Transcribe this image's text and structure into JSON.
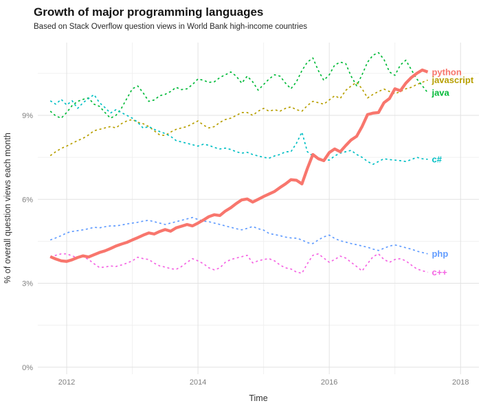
{
  "header": {
    "title": "Growth of major programming languages",
    "subtitle": "Based on Stack Overflow question views in World Bank high-income countries"
  },
  "chart_data": {
    "type": "line",
    "title": "Growth of major programming languages",
    "subtitle": "Based on Stack Overflow question views in World Bank high-income countries",
    "xlabel": "Time",
    "ylabel": "% of overall question views each month",
    "x_unit": "decimal years, monthly samples",
    "x_start": 2011.75,
    "x_step": 0.0833333,
    "n_points": 70,
    "x_range": [
      2011.56,
      2018.28
    ],
    "y_range": [
      -0.25,
      11.6
    ],
    "x_ticks": [
      {
        "value": 2012,
        "label": "2012"
      },
      {
        "value": 2014,
        "label": "2014"
      },
      {
        "value": 2016,
        "label": "2016"
      },
      {
        "value": 2018,
        "label": "2018"
      }
    ],
    "x_minor_ticks": [
      2013,
      2015,
      2017
    ],
    "y_ticks": [
      {
        "value": 0,
        "label": "0%"
      },
      {
        "value": 3,
        "label": "3%"
      },
      {
        "value": 6,
        "label": "6%"
      },
      {
        "value": 9,
        "label": "9%"
      }
    ],
    "y_minor_ticks": [
      1.5,
      4.5,
      7.5,
      10.5
    ],
    "grid": {
      "major_color": "#e2e2e2",
      "minor_color": "#f0f0f0",
      "background": "#ffffff"
    },
    "legend_position": "right-of-line-ends",
    "series": [
      {
        "name": "python",
        "color": "#F8766D",
        "style": "solid",
        "width": 4.3,
        "values": [
          3.95,
          3.87,
          3.8,
          3.78,
          3.84,
          3.92,
          3.98,
          3.94,
          4.02,
          4.1,
          4.16,
          4.24,
          4.33,
          4.4,
          4.46,
          4.55,
          4.63,
          4.72,
          4.8,
          4.76,
          4.85,
          4.92,
          4.86,
          4.98,
          5.04,
          5.1,
          5.05,
          5.15,
          5.26,
          5.38,
          5.45,
          5.42,
          5.58,
          5.7,
          5.85,
          5.98,
          6.01,
          5.9,
          6.0,
          6.1,
          6.19,
          6.28,
          6.42,
          6.55,
          6.7,
          6.68,
          6.55,
          7.1,
          7.6,
          7.45,
          7.38,
          7.67,
          7.8,
          7.7,
          7.92,
          8.12,
          8.25,
          8.6,
          9.03,
          9.08,
          9.1,
          9.45,
          9.6,
          9.95,
          9.88,
          10.15,
          10.35,
          10.5,
          10.62,
          10.55
        ]
      },
      {
        "name": "javascript",
        "color": "#B79F00",
        "style": "dashed",
        "width": 1.7,
        "values": [
          7.56,
          7.7,
          7.82,
          7.9,
          8.0,
          8.1,
          8.18,
          8.3,
          8.45,
          8.5,
          8.55,
          8.6,
          8.55,
          8.7,
          8.8,
          8.85,
          8.75,
          8.7,
          8.6,
          8.45,
          8.3,
          8.28,
          8.4,
          8.5,
          8.55,
          8.6,
          8.7,
          8.8,
          8.65,
          8.55,
          8.6,
          8.75,
          8.85,
          8.9,
          9.0,
          9.1,
          9.1,
          9.0,
          9.15,
          9.25,
          9.15,
          9.2,
          9.15,
          9.25,
          9.3,
          9.2,
          9.15,
          9.35,
          9.5,
          9.45,
          9.4,
          9.55,
          9.7,
          9.6,
          9.89,
          10.05,
          10.18,
          9.95,
          9.62,
          9.75,
          9.85,
          9.94,
          9.85,
          9.77,
          9.85,
          9.95,
          10.0,
          10.1,
          10.18,
          10.26
        ]
      },
      {
        "name": "java",
        "color": "#00BA38",
        "style": "dashed",
        "width": 1.7,
        "values": [
          9.15,
          8.98,
          8.9,
          9.1,
          9.35,
          9.5,
          9.57,
          9.62,
          9.4,
          9.32,
          9.1,
          8.9,
          9.0,
          9.25,
          9.6,
          9.95,
          10.05,
          9.8,
          9.5,
          9.55,
          9.7,
          9.75,
          9.85,
          10.0,
          9.92,
          9.95,
          10.1,
          10.3,
          10.25,
          10.18,
          10.2,
          10.35,
          10.45,
          10.55,
          10.4,
          10.15,
          10.4,
          10.2,
          9.9,
          10.1,
          10.3,
          10.45,
          10.4,
          10.15,
          9.95,
          10.2,
          10.6,
          10.9,
          11.05,
          10.6,
          10.25,
          10.45,
          10.8,
          10.9,
          10.85,
          10.4,
          10.06,
          10.45,
          10.9,
          11.15,
          11.24,
          11.0,
          10.55,
          10.43,
          10.8,
          10.97,
          10.63,
          10.3,
          10.06,
          9.81
        ]
      },
      {
        "name": "c#",
        "color": "#00BFC4",
        "style": "dashed",
        "width": 1.7,
        "values": [
          9.52,
          9.4,
          9.57,
          9.37,
          9.52,
          9.25,
          9.45,
          9.6,
          9.74,
          9.45,
          9.28,
          9.08,
          9.2,
          9.1,
          9.0,
          8.9,
          8.75,
          8.54,
          8.6,
          8.5,
          8.42,
          8.35,
          8.25,
          8.1,
          8.05,
          8.0,
          7.95,
          7.9,
          7.97,
          7.93,
          7.85,
          7.8,
          7.83,
          7.78,
          7.7,
          7.65,
          7.68,
          7.6,
          7.55,
          7.5,
          7.47,
          7.55,
          7.6,
          7.7,
          7.7,
          8.0,
          8.4,
          7.7,
          7.55,
          7.45,
          7.42,
          7.4,
          7.55,
          7.65,
          7.7,
          7.75,
          7.6,
          7.5,
          7.35,
          7.25,
          7.35,
          7.45,
          7.42,
          7.4,
          7.38,
          7.35,
          7.42,
          7.5,
          7.45,
          7.43
        ]
      },
      {
        "name": "php",
        "color": "#619CFF",
        "style": "dashed",
        "width": 1.7,
        "values": [
          4.55,
          4.62,
          4.7,
          4.8,
          4.85,
          4.88,
          4.91,
          4.95,
          5.0,
          4.98,
          5.02,
          5.05,
          5.05,
          5.08,
          5.12,
          5.15,
          5.18,
          5.22,
          5.25,
          5.2,
          5.15,
          5.1,
          5.15,
          5.2,
          5.25,
          5.3,
          5.35,
          5.28,
          5.22,
          5.2,
          5.15,
          5.1,
          5.05,
          5.0,
          4.95,
          4.91,
          4.96,
          5.03,
          4.95,
          4.9,
          4.78,
          4.74,
          4.7,
          4.65,
          4.62,
          4.61,
          4.55,
          4.45,
          4.42,
          4.55,
          4.66,
          4.72,
          4.6,
          4.52,
          4.47,
          4.42,
          4.38,
          4.33,
          4.29,
          4.22,
          4.17,
          4.25,
          4.33,
          4.37,
          4.32,
          4.27,
          4.22,
          4.15,
          4.1,
          4.05
        ]
      },
      {
        "name": "c++",
        "color": "#F564E3",
        "style": "dashed",
        "width": 1.7,
        "values": [
          3.95,
          4.0,
          4.05,
          4.05,
          3.98,
          3.9,
          3.95,
          3.85,
          3.7,
          3.56,
          3.58,
          3.62,
          3.6,
          3.65,
          3.72,
          3.8,
          3.93,
          3.88,
          3.85,
          3.72,
          3.62,
          3.58,
          3.52,
          3.5,
          3.6,
          3.75,
          3.88,
          3.8,
          3.7,
          3.55,
          3.48,
          3.55,
          3.75,
          3.85,
          3.9,
          3.95,
          4.0,
          3.73,
          3.8,
          3.85,
          3.88,
          3.8,
          3.65,
          3.55,
          3.51,
          3.4,
          3.36,
          3.7,
          4.0,
          4.05,
          3.9,
          3.75,
          3.85,
          3.97,
          3.9,
          3.75,
          3.6,
          3.44,
          3.7,
          3.95,
          4.05,
          3.85,
          3.75,
          3.85,
          3.88,
          3.8,
          3.65,
          3.51,
          3.45,
          3.39
        ]
      }
    ]
  }
}
